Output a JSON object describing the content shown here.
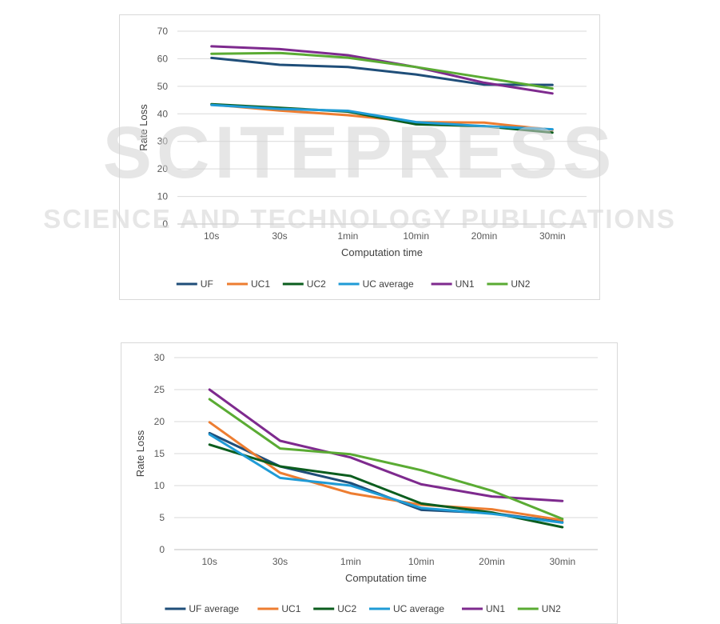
{
  "chart_data": [
    {
      "type": "line",
      "categories": [
        "10s",
        "30s",
        "1min",
        "10min",
        "20min",
        "30min"
      ],
      "ylim": [
        0,
        70
      ],
      "yticks": [
        0,
        10,
        20,
        30,
        40,
        50,
        60,
        70
      ],
      "xlabel": "Computation time",
      "ylabel": "Rate Loss",
      "grid": true,
      "legend": "bottom",
      "series": [
        {
          "name": "UF",
          "color": "#1f4e79",
          "values": [
            60.3,
            57.8,
            57.0,
            54.3,
            50.6,
            50.5
          ]
        },
        {
          "name": "UC1",
          "color": "#ed7d31",
          "values": [
            43.4,
            41.2,
            39.5,
            37.0,
            36.8,
            34.2
          ]
        },
        {
          "name": "UC2",
          "color": "#0b5d1e",
          "values": [
            43.5,
            42.2,
            40.8,
            36.2,
            35.5,
            33.2
          ]
        },
        {
          "name": "UC average",
          "color": "#1f9bd6",
          "values": [
            43.2,
            41.8,
            41.1,
            37.0,
            35.5,
            34.4
          ]
        },
        {
          "name": "UN1",
          "color": "#7e2a8e",
          "values": [
            64.5,
            63.5,
            61.3,
            57.0,
            51.3,
            47.4
          ]
        },
        {
          "name": "UN2",
          "color": "#5aab33",
          "values": [
            61.8,
            62.1,
            60.4,
            57.0,
            53.1,
            49.2
          ]
        }
      ]
    },
    {
      "type": "line",
      "categories": [
        "10s",
        "30s",
        "1min",
        "10min",
        "20min",
        "30min"
      ],
      "ylim": [
        0,
        30
      ],
      "yticks": [
        0,
        5,
        10,
        15,
        20,
        25,
        30
      ],
      "xlabel": "Computation time",
      "ylabel": "Rate Loss",
      "grid": true,
      "legend": "bottom",
      "series": [
        {
          "name": "UF average",
          "color": "#1f4e79",
          "values": [
            18.2,
            13.0,
            10.4,
            6.2,
            5.7,
            4.3
          ]
        },
        {
          "name": "UC1",
          "color": "#ed7d31",
          "values": [
            19.9,
            12.0,
            8.8,
            7.0,
            6.3,
            4.6
          ]
        },
        {
          "name": "UC2",
          "color": "#0b5d1e",
          "values": [
            16.4,
            13.0,
            11.5,
            7.2,
            5.8,
            3.5
          ]
        },
        {
          "name": "UC average",
          "color": "#1f9bd6",
          "values": [
            18.0,
            11.2,
            10.0,
            6.5,
            5.6,
            4.2
          ]
        },
        {
          "name": "UN1",
          "color": "#7e2a8e",
          "values": [
            25.0,
            17.0,
            14.4,
            10.2,
            8.3,
            7.6
          ]
        },
        {
          "name": "UN2",
          "color": "#5aab33",
          "values": [
            23.5,
            15.8,
            14.9,
            12.4,
            9.2,
            4.8
          ]
        }
      ]
    }
  ],
  "watermark": {
    "brand": "SCITEPRESS",
    "tagline": "SCIENCE AND TECHNOLOGY PUBLICATIONS"
  }
}
